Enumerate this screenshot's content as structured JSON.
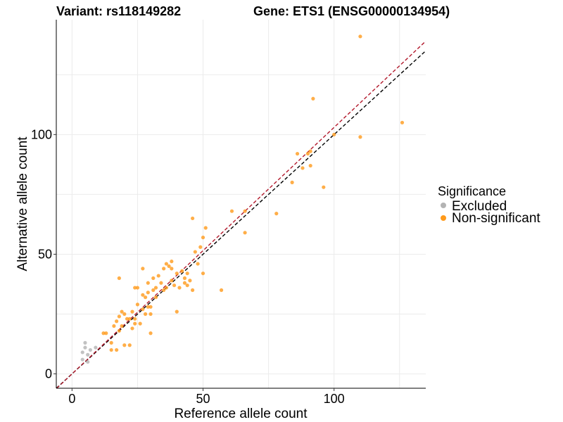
{
  "chart_data": {
    "type": "scatter",
    "title_left": "Variant: rs118149282",
    "title_right": "Gene: ETS1 (ENSG00000134954)",
    "xlabel": "Reference allele count",
    "ylabel": "Alternative allele count",
    "xlim": [
      -6,
      135
    ],
    "ylim": [
      -6,
      148
    ],
    "x_ticks": [
      0,
      50,
      100
    ],
    "y_ticks": [
      0,
      50,
      100
    ],
    "grid": true,
    "legend": {
      "title": "Significance",
      "placement": "right",
      "entries": [
        {
          "label": "Excluded",
          "color": "#b3b3b3"
        },
        {
          "label": "Non-significant",
          "color": "#ff9a1a"
        }
      ]
    },
    "reference_lines": [
      {
        "slope": 1.0,
        "intercept": 0,
        "color": "#000000",
        "style": "dashed"
      },
      {
        "slope": 1.03,
        "intercept": 0,
        "color": "#b2182b",
        "style": "dashed"
      }
    ],
    "series": [
      {
        "name": "Excluded",
        "color": "#b3b3b3",
        "points": [
          [
            4,
            9
          ],
          [
            5,
            11
          ],
          [
            5,
            13
          ],
          [
            6,
            8
          ],
          [
            7,
            10
          ],
          [
            9,
            11
          ],
          [
            4,
            6
          ],
          [
            6,
            5
          ]
        ]
      },
      {
        "name": "Non-significant",
        "color": "#ff9a1a",
        "points": [
          [
            12,
            17
          ],
          [
            13,
            17
          ],
          [
            15,
            13
          ],
          [
            15,
            10
          ],
          [
            17,
            10
          ],
          [
            16,
            20
          ],
          [
            17,
            22
          ],
          [
            18,
            18
          ],
          [
            18,
            24
          ],
          [
            19,
            20
          ],
          [
            19,
            26
          ],
          [
            20,
            25
          ],
          [
            20,
            12
          ],
          [
            21,
            23
          ],
          [
            22,
            12
          ],
          [
            22,
            23
          ],
          [
            23,
            26
          ],
          [
            23,
            19
          ],
          [
            24,
            21
          ],
          [
            24,
            23
          ],
          [
            25,
            29
          ],
          [
            25,
            36
          ],
          [
            26,
            21
          ],
          [
            27,
            27
          ],
          [
            27,
            44
          ],
          [
            28,
            32
          ],
          [
            28,
            25
          ],
          [
            29,
            38
          ],
          [
            29,
            28
          ],
          [
            29,
            34
          ],
          [
            30,
            17
          ],
          [
            30,
            25
          ],
          [
            30,
            28
          ],
          [
            31,
            35
          ],
          [
            32,
            36
          ],
          [
            32,
            32
          ],
          [
            33,
            41
          ],
          [
            34,
            38
          ],
          [
            35,
            35
          ],
          [
            35,
            44
          ],
          [
            36,
            36
          ],
          [
            36,
            46
          ],
          [
            37,
            45
          ],
          [
            38,
            39
          ],
          [
            38,
            44
          ],
          [
            38,
            47
          ],
          [
            39,
            37
          ],
          [
            40,
            26
          ],
          [
            40,
            42
          ],
          [
            41,
            36
          ],
          [
            42,
            43
          ],
          [
            43,
            40
          ],
          [
            43,
            38
          ],
          [
            44,
            37
          ],
          [
            44,
            42
          ],
          [
            45,
            39
          ],
          [
            46,
            35
          ],
          [
            46,
            65
          ],
          [
            47,
            51
          ],
          [
            48,
            46
          ],
          [
            49,
            53
          ],
          [
            50,
            57
          ],
          [
            50,
            42
          ],
          [
            51,
            61
          ],
          [
            57,
            35
          ],
          [
            61,
            68
          ],
          [
            66,
            68
          ],
          [
            66,
            59
          ],
          [
            78,
            67
          ],
          [
            84,
            80
          ],
          [
            86,
            92
          ],
          [
            88,
            86
          ],
          [
            90,
            92
          ],
          [
            91,
            93
          ],
          [
            91,
            87
          ],
          [
            92,
            115
          ],
          [
            96,
            78
          ],
          [
            100,
            100
          ],
          [
            110,
            99
          ],
          [
            110,
            141
          ],
          [
            126,
            105
          ],
          [
            18,
            40
          ],
          [
            24,
            36
          ],
          [
            27,
            33
          ],
          [
            31,
            40
          ]
        ]
      }
    ]
  }
}
